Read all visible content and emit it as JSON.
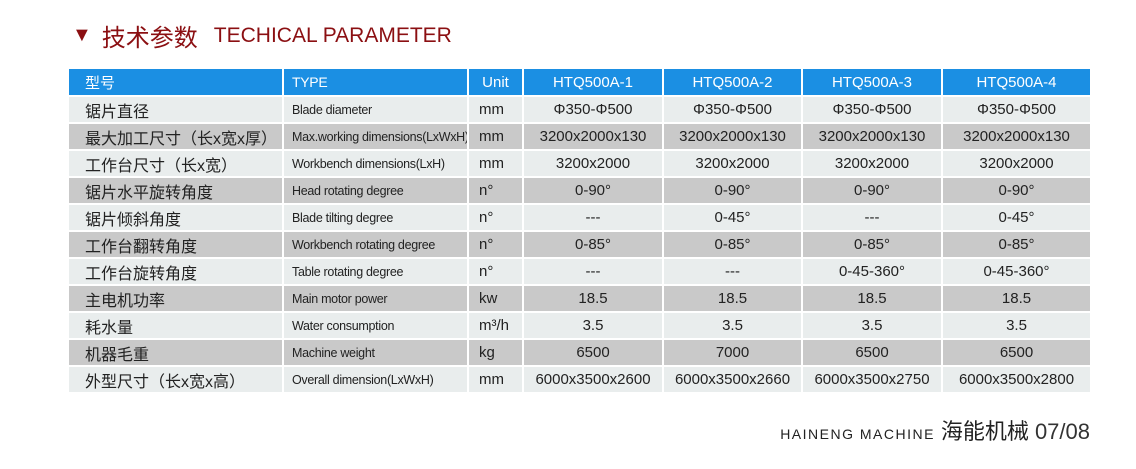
{
  "title": {
    "zh": "技术参数",
    "en": "TECHICAL PARAMETER",
    "icon": "triangle-down-icon",
    "color": "#8b0f12"
  },
  "table": {
    "header": {
      "zh": "型号",
      "en": "TYPE",
      "unit": "Unit",
      "models": [
        "HTQ500A-1",
        "HTQ500A-2",
        "HTQ500A-3",
        "HTQ500A-4"
      ]
    },
    "header_color": "#1b8fe3",
    "rows": [
      {
        "zh": "锯片直径",
        "en": "Blade diameter",
        "unit": "mm",
        "values": [
          "Φ350-Φ500",
          "Φ350-Φ500",
          "Φ350-Φ500",
          "Φ350-Φ500"
        ]
      },
      {
        "zh": "最大加工尺寸（长x宽x厚）",
        "en": "Max.working dimensions(LxWxH)",
        "unit": "mm",
        "values": [
          "3200x2000x130",
          "3200x2000x130",
          "3200x2000x130",
          "3200x2000x130"
        ]
      },
      {
        "zh": "工作台尺寸（长x宽）",
        "en": "Workbench dimensions(LxH)",
        "unit": "mm",
        "values": [
          "3200x2000",
          "3200x2000",
          "3200x2000",
          "3200x2000"
        ]
      },
      {
        "zh": "锯片水平旋转角度",
        "en": "Head rotating degree",
        "unit": "n°",
        "values": [
          "0-90°",
          "0-90°",
          "0-90°",
          "0-90°"
        ]
      },
      {
        "zh": "锯片倾斜角度",
        "en": "Blade tilting degree",
        "unit": "n°",
        "values": [
          "---",
          "0-45°",
          "---",
          "0-45°"
        ]
      },
      {
        "zh": "工作台翻转角度",
        "en": "Workbench rotating degree",
        "unit": "n°",
        "values": [
          "0-85°",
          "0-85°",
          "0-85°",
          "0-85°"
        ]
      },
      {
        "zh": "工作台旋转角度",
        "en": "Table rotating degree",
        "unit": "n°",
        "values": [
          "---",
          "---",
          "0-45-360°",
          "0-45-360°"
        ]
      },
      {
        "zh": "主电机功率",
        "en": "Main motor power",
        "unit": "kw",
        "values": [
          "18.5",
          "18.5",
          "18.5",
          "18.5"
        ]
      },
      {
        "zh": "耗水量",
        "en": "Water consumption",
        "unit": "m³/h",
        "values": [
          "3.5",
          "3.5",
          "3.5",
          "3.5"
        ]
      },
      {
        "zh": "机器毛重",
        "en": "Machine weight",
        "unit": "kg",
        "values": [
          "6500",
          "7000",
          "6500",
          "6500"
        ]
      },
      {
        "zh": "外型尺寸（长x宽x高）",
        "en": "Overall dimension(LxWxH)",
        "unit": "mm",
        "values": [
          "6000x3500x2600",
          "6000x3500x2660",
          "6000x3500x2750",
          "6000x3500x2800"
        ]
      }
    ]
  },
  "footer": {
    "brand_en": "HAINENG MACHINE",
    "brand_zh": "海能机械",
    "page": "07/08"
  }
}
